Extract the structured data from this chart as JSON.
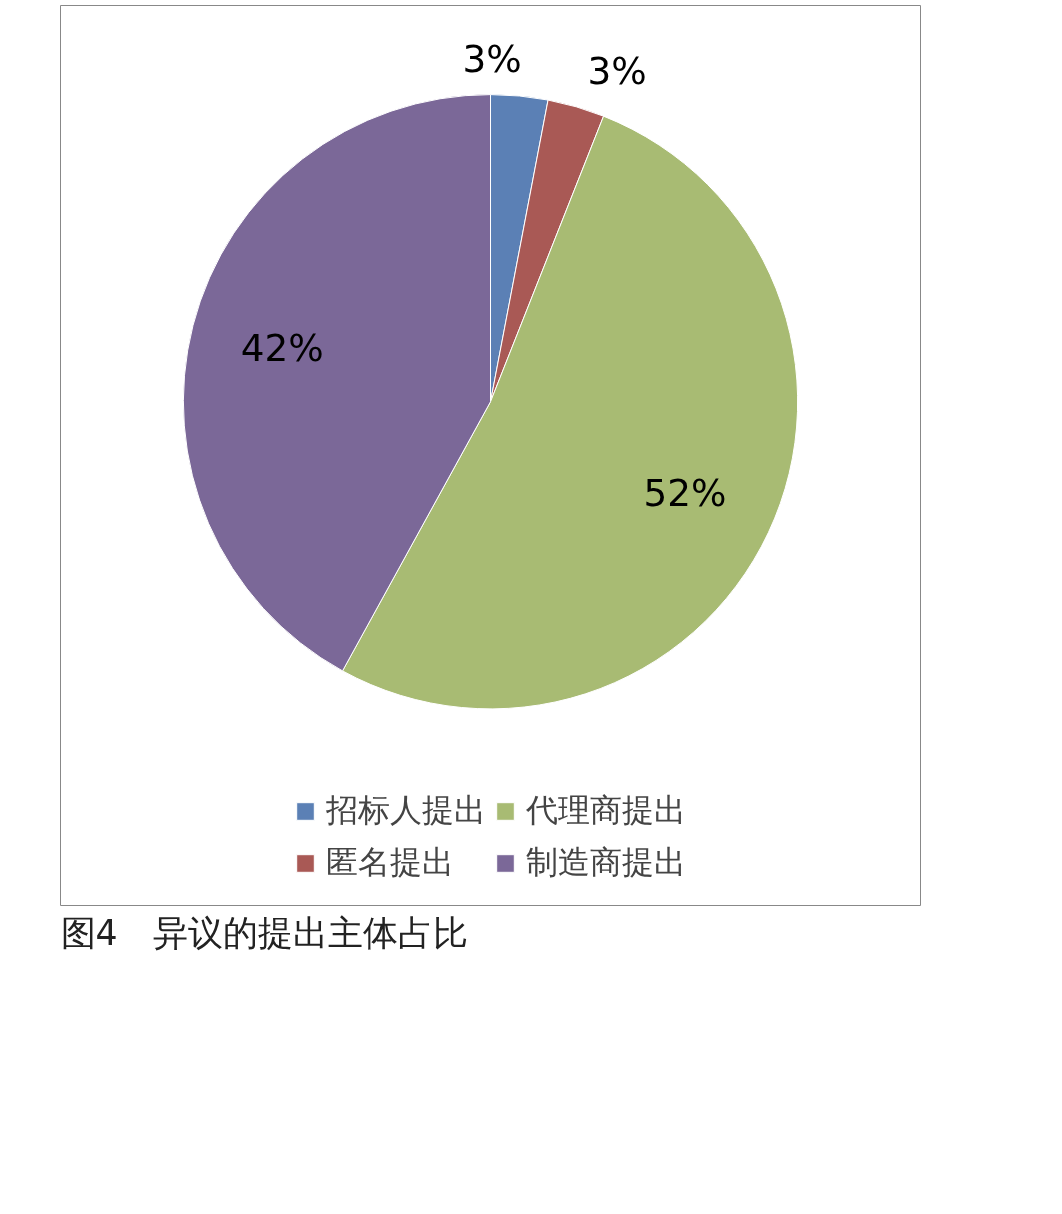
{
  "chart_data": {
    "type": "pie",
    "title": "图4　异议的提出主体占比",
    "categories": [
      "招标人提出",
      "匿名提出",
      "代理商提出",
      "制造商提出"
    ],
    "values": [
      3,
      3,
      52,
      42
    ],
    "colors": [
      "#5b80b5",
      "#a95955",
      "#a8bb73",
      "#7b6898"
    ],
    "value_labels": [
      "3%",
      "3%",
      "52%",
      "42%"
    ],
    "legend": "bottom"
  }
}
